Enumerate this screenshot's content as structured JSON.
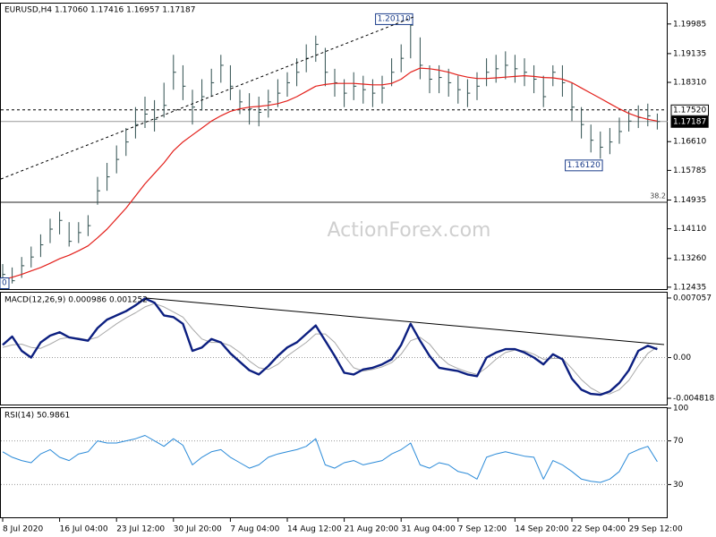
{
  "chart_data": [
    {
      "type": "ohlc",
      "title": "EURUSD,H4  1.17060 1.17416 1.16957 1.17187",
      "watermark": "ActionForex.com",
      "edge_label": "0",
      "categories": [
        "8 Jul 2020",
        null,
        null,
        null,
        null,
        null,
        "16 Jul 04:00",
        null,
        null,
        null,
        null,
        null,
        "23 Jul 12:00",
        null,
        null,
        null,
        null,
        null,
        "30 Jul 20:00",
        null,
        null,
        null,
        null,
        null,
        "7 Aug 04:00",
        null,
        null,
        null,
        null,
        null,
        "14 Aug 12:00",
        null,
        null,
        null,
        null,
        null,
        "21 Aug 20:00",
        null,
        null,
        null,
        null,
        null,
        "31 Aug 04:00",
        null,
        null,
        null,
        null,
        null,
        "7 Sep 12:00",
        null,
        null,
        null,
        null,
        null,
        "14 Sep 20:00",
        null,
        null,
        null,
        null,
        null,
        "22 Sep 04:00",
        null,
        null,
        null,
        null,
        null,
        "29 Sep 12:00",
        null,
        null,
        null
      ],
      "high": [
        1.131,
        1.13,
        1.133,
        1.136,
        1.1395,
        1.144,
        1.146,
        1.143,
        1.143,
        1.145,
        1.156,
        1.16,
        1.165,
        1.17,
        1.176,
        1.179,
        1.178,
        1.183,
        1.191,
        1.188,
        1.181,
        1.184,
        1.187,
        1.191,
        1.188,
        1.181,
        1.18,
        1.179,
        1.181,
        1.184,
        1.186,
        1.19,
        1.194,
        1.1965,
        1.193,
        1.187,
        1.184,
        1.186,
        1.185,
        1.184,
        1.185,
        1.19,
        1.194,
        1.2011,
        1.196,
        1.188,
        1.188,
        1.187,
        1.185,
        1.184,
        1.186,
        1.19,
        1.191,
        1.192,
        1.191,
        1.19,
        1.188,
        1.185,
        1.188,
        1.188,
        1.183,
        1.176,
        1.171,
        1.169,
        1.17,
        1.173,
        1.175,
        1.1765,
        1.177,
        1.17416
      ],
      "low": [
        1.125,
        1.1254,
        1.127,
        1.13,
        1.133,
        1.137,
        1.1395,
        1.136,
        1.137,
        1.139,
        1.148,
        1.152,
        1.157,
        1.162,
        1.167,
        1.17,
        1.169,
        1.173,
        1.181,
        1.178,
        1.171,
        1.175,
        1.179,
        1.183,
        1.178,
        1.174,
        1.171,
        1.1705,
        1.173,
        1.176,
        1.179,
        1.182,
        1.186,
        1.189,
        1.182,
        1.179,
        1.176,
        1.178,
        1.177,
        1.176,
        1.177,
        1.182,
        1.186,
        1.19,
        1.184,
        1.18,
        1.18,
        1.179,
        1.177,
        1.176,
        1.178,
        1.182,
        1.183,
        1.184,
        1.183,
        1.182,
        1.18,
        1.176,
        1.182,
        1.179,
        1.172,
        1.167,
        1.163,
        1.1612,
        1.1625,
        1.1655,
        1.169,
        1.17,
        1.1705,
        1.16957
      ],
      "close": [
        1.128,
        1.1262,
        1.1305,
        1.133,
        1.1365,
        1.141,
        1.1435,
        1.1375,
        1.14,
        1.142,
        1.152,
        1.156,
        1.161,
        1.166,
        1.171,
        1.174,
        1.1725,
        1.1765,
        1.186,
        1.182,
        1.176,
        1.179,
        1.183,
        1.188,
        1.182,
        1.1775,
        1.1755,
        1.1745,
        1.1775,
        1.18,
        1.183,
        1.186,
        1.19,
        1.194,
        1.186,
        1.183,
        1.18,
        1.182,
        1.181,
        1.18,
        1.1815,
        1.186,
        1.19,
        1.1995,
        1.188,
        1.184,
        1.1845,
        1.183,
        1.181,
        1.18,
        1.182,
        1.186,
        1.187,
        1.188,
        1.187,
        1.186,
        1.184,
        1.179,
        1.186,
        1.183,
        1.176,
        1.171,
        1.1665,
        1.1645,
        1.166,
        1.169,
        1.172,
        1.173,
        1.1735,
        1.17187
      ],
      "color": "#2f4f4f",
      "ma": [
        1.1265,
        1.1272,
        1.128,
        1.129,
        1.13,
        1.1312,
        1.1325,
        1.1335,
        1.1348,
        1.1362,
        1.1385,
        1.141,
        1.144,
        1.147,
        1.1505,
        1.154,
        1.157,
        1.16,
        1.1635,
        1.166,
        1.168,
        1.17,
        1.172,
        1.1735,
        1.1748,
        1.1755,
        1.176,
        1.1762,
        1.1765,
        1.177,
        1.1778,
        1.179,
        1.1805,
        1.182,
        1.1825,
        1.1828,
        1.1828,
        1.1828,
        1.1826,
        1.1824,
        1.1824,
        1.1828,
        1.184,
        1.186,
        1.1872,
        1.187,
        1.1866,
        1.186,
        1.1852,
        1.1846,
        1.1842,
        1.1842,
        1.1844,
        1.1846,
        1.1848,
        1.185,
        1.1848,
        1.1845,
        1.1844,
        1.184,
        1.183,
        1.1815,
        1.18,
        1.1785,
        1.177,
        1.1755,
        1.1742,
        1.1732,
        1.1725,
        1.172
      ],
      "ma_color": "#e3201b",
      "ylim": [
        1.1238,
        1.2057
      ],
      "yticks": [
        1.19985,
        1.19135,
        {
          "value": 1.1831,
          "label": "1.18310"
        },
        {
          "value": 1.1661,
          "label": "1.16610"
        },
        1.15785,
        1.14935,
        {
          "value": 1.1411,
          "label": "1.14110"
        },
        {
          "value": 1.1326,
          "label": "1.13260"
        },
        1.12435
      ],
      "price_lines": [
        {
          "value": 1.1752,
          "label": "1.17520",
          "style": "dashed"
        },
        {
          "value": 1.17187,
          "label": "1.17187",
          "style": "solid"
        }
      ],
      "fib_line": {
        "value": 1.1487,
        "label": "38.2"
      },
      "annotations": [
        {
          "value": 1.2011,
          "label": "1.20110"
        },
        {
          "value": 1.1612,
          "label": "1.16120"
        }
      ]
    },
    {
      "type": "macd",
      "title": "MACD(12,26,9) 0.000986 0.001252",
      "series": [
        {
          "color": "#0c1f80",
          "values": [
            0.0015,
            0.0025,
            0.0008,
            0.0,
            0.0018,
            0.0026,
            0.003,
            0.0024,
            0.0022,
            0.002,
            0.0035,
            0.0045,
            0.005,
            0.0055,
            0.0062,
            0.007,
            0.0065,
            0.005,
            0.0048,
            0.004,
            0.0008,
            0.0012,
            0.0022,
            0.0018,
            0.0005,
            -0.0005,
            -0.0015,
            -0.002,
            -0.001,
            0.0002,
            0.0012,
            0.0018,
            0.0028,
            0.0038,
            0.002,
            0.0002,
            -0.0018,
            -0.002,
            -0.0014,
            -0.0012,
            -0.0008,
            -0.0002,
            0.0015,
            0.004,
            0.002,
            0.0002,
            -0.0012,
            -0.0014,
            -0.0016,
            -0.002,
            -0.0022,
            0.0,
            0.0006,
            0.001,
            0.001,
            0.0006,
            0.0,
            -0.0008,
            0.0004,
            -0.0002,
            -0.0025,
            -0.0038,
            -0.0043,
            -0.0044,
            -0.004,
            -0.003,
            -0.0015,
            0.0008,
            0.0014,
            0.000986
          ]
        },
        {
          "color": "#a8a8a8",
          "values": [
            0.0012,
            0.0015,
            0.0016,
            0.0012,
            0.0011,
            0.0016,
            0.0022,
            0.0024,
            0.0023,
            0.0021,
            0.0024,
            0.0032,
            0.004,
            0.0047,
            0.0053,
            0.006,
            0.0064,
            0.006,
            0.0054,
            0.0048,
            0.0034,
            0.0022,
            0.0018,
            0.0018,
            0.0014,
            0.0006,
            -0.0004,
            -0.0012,
            -0.0014,
            -0.0008,
            0.0002,
            0.001,
            0.0018,
            0.0028,
            0.0028,
            0.0018,
            0.0002,
            -0.0012,
            -0.0016,
            -0.0014,
            -0.0011,
            -0.0006,
            0.0004,
            0.002,
            0.0024,
            0.0016,
            0.0002,
            -0.0008,
            -0.0013,
            -0.0017,
            -0.002,
            -0.0012,
            -0.0002,
            0.0006,
            0.0009,
            0.0008,
            0.0004,
            -0.0002,
            -0.0001,
            -0.0001,
            -0.0013,
            -0.0026,
            -0.0036,
            -0.0042,
            -0.0043,
            -0.0038,
            -0.0027,
            -0.001,
            0.0005,
            0.001252
          ]
        }
      ],
      "ylim": [
        -0.00556,
        0.00769
      ],
      "yticks": [
        0.007057,
        -0.004818
      ],
      "levels": [
        {
          "value": 0,
          "label": "0.00"
        }
      ]
    },
    {
      "type": "rsi",
      "title": "RSI(14) 50.9861",
      "series": [
        {
          "color": "#2a8ad8",
          "values": [
            60,
            55,
            52,
            50,
            58,
            62,
            55,
            52,
            58,
            60,
            70,
            68,
            68,
            70,
            72,
            75,
            70,
            65,
            72,
            66,
            48,
            55,
            60,
            62,
            55,
            50,
            45,
            48,
            55,
            58,
            60,
            62,
            65,
            72,
            48,
            45,
            50,
            52,
            48,
            50,
            52,
            58,
            62,
            68,
            48,
            45,
            50,
            48,
            42,
            40,
            35,
            55,
            58,
            60,
            58,
            56,
            55,
            35,
            52,
            48,
            42,
            35,
            33,
            32,
            35,
            42,
            58,
            62,
            65,
            50.9861
          ]
        }
      ],
      "ylim": [
        0,
        100
      ],
      "yticks": [
        100
      ],
      "levels": [
        70,
        30
      ]
    }
  ]
}
